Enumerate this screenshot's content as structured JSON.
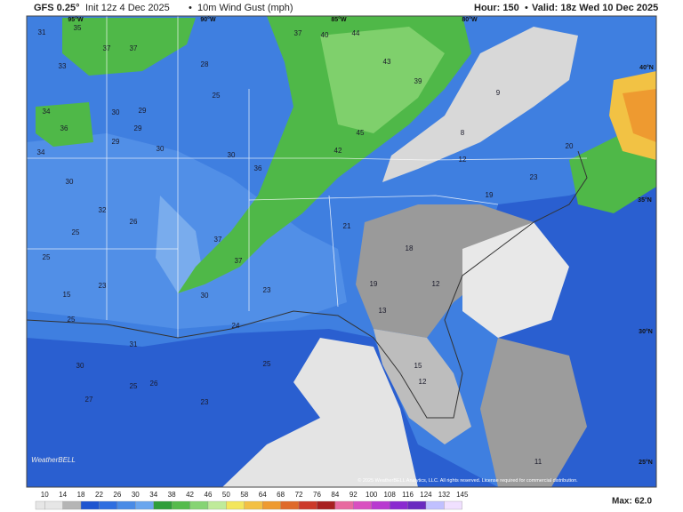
{
  "header": {
    "model": "GFS 0.25°",
    "init": "Init 12z 4 Dec 2025",
    "separator": "•",
    "product": "10m Wind Gust (mph)",
    "hour": "Hour: 150",
    "valid": "Valid: 18z Wed 10 Dec 2025"
  },
  "map": {
    "longitude_labels": [
      "95°W",
      "90°W",
      "85°W",
      "80°W"
    ],
    "latitude_labels": [
      "40°N",
      "35°N",
      "30°N",
      "25°N"
    ],
    "point_values": [
      31,
      35,
      37,
      37,
      33,
      34,
      36,
      30,
      29,
      29,
      29,
      30,
      34,
      30,
      32,
      26,
      25,
      25,
      15,
      23,
      25,
      31,
      30,
      26,
      27,
      25,
      23,
      28,
      25,
      30,
      36,
      37,
      30,
      37,
      23,
      24,
      25,
      37,
      40,
      44,
      43,
      39,
      45,
      42,
      21,
      19,
      18,
      13,
      12,
      15,
      12,
      12,
      19,
      23,
      20,
      9,
      8,
      11
    ],
    "copyright": "© 2025 WeatherBELL Analytics, LLC. All rights reserved. License required for commercial distribution.",
    "logo": "WeatherBELL"
  },
  "colorbar": {
    "ticks": [
      10,
      14,
      18,
      22,
      26,
      30,
      34,
      38,
      42,
      46,
      50,
      58,
      64,
      68,
      72,
      76,
      84,
      92,
      100,
      108,
      116,
      124,
      132,
      145
    ],
    "colors": [
      "#e6e6e6",
      "#b5b5b5",
      "#1f55d0",
      "#2f6ee0",
      "#4a8be6",
      "#6aa6ee",
      "#2f9e3a",
      "#55bb4c",
      "#86d474",
      "#bfeb9a",
      "#f3e65c",
      "#f3c044",
      "#ee9a30",
      "#df6a2a",
      "#cc3a2a",
      "#a82020",
      "#e86aa0",
      "#d94fc0",
      "#b83ad0",
      "#8a2ad0",
      "#6a2ac0",
      "#c0c0ff",
      "#f0e0ff"
    ]
  },
  "max": "Max: 62.0"
}
